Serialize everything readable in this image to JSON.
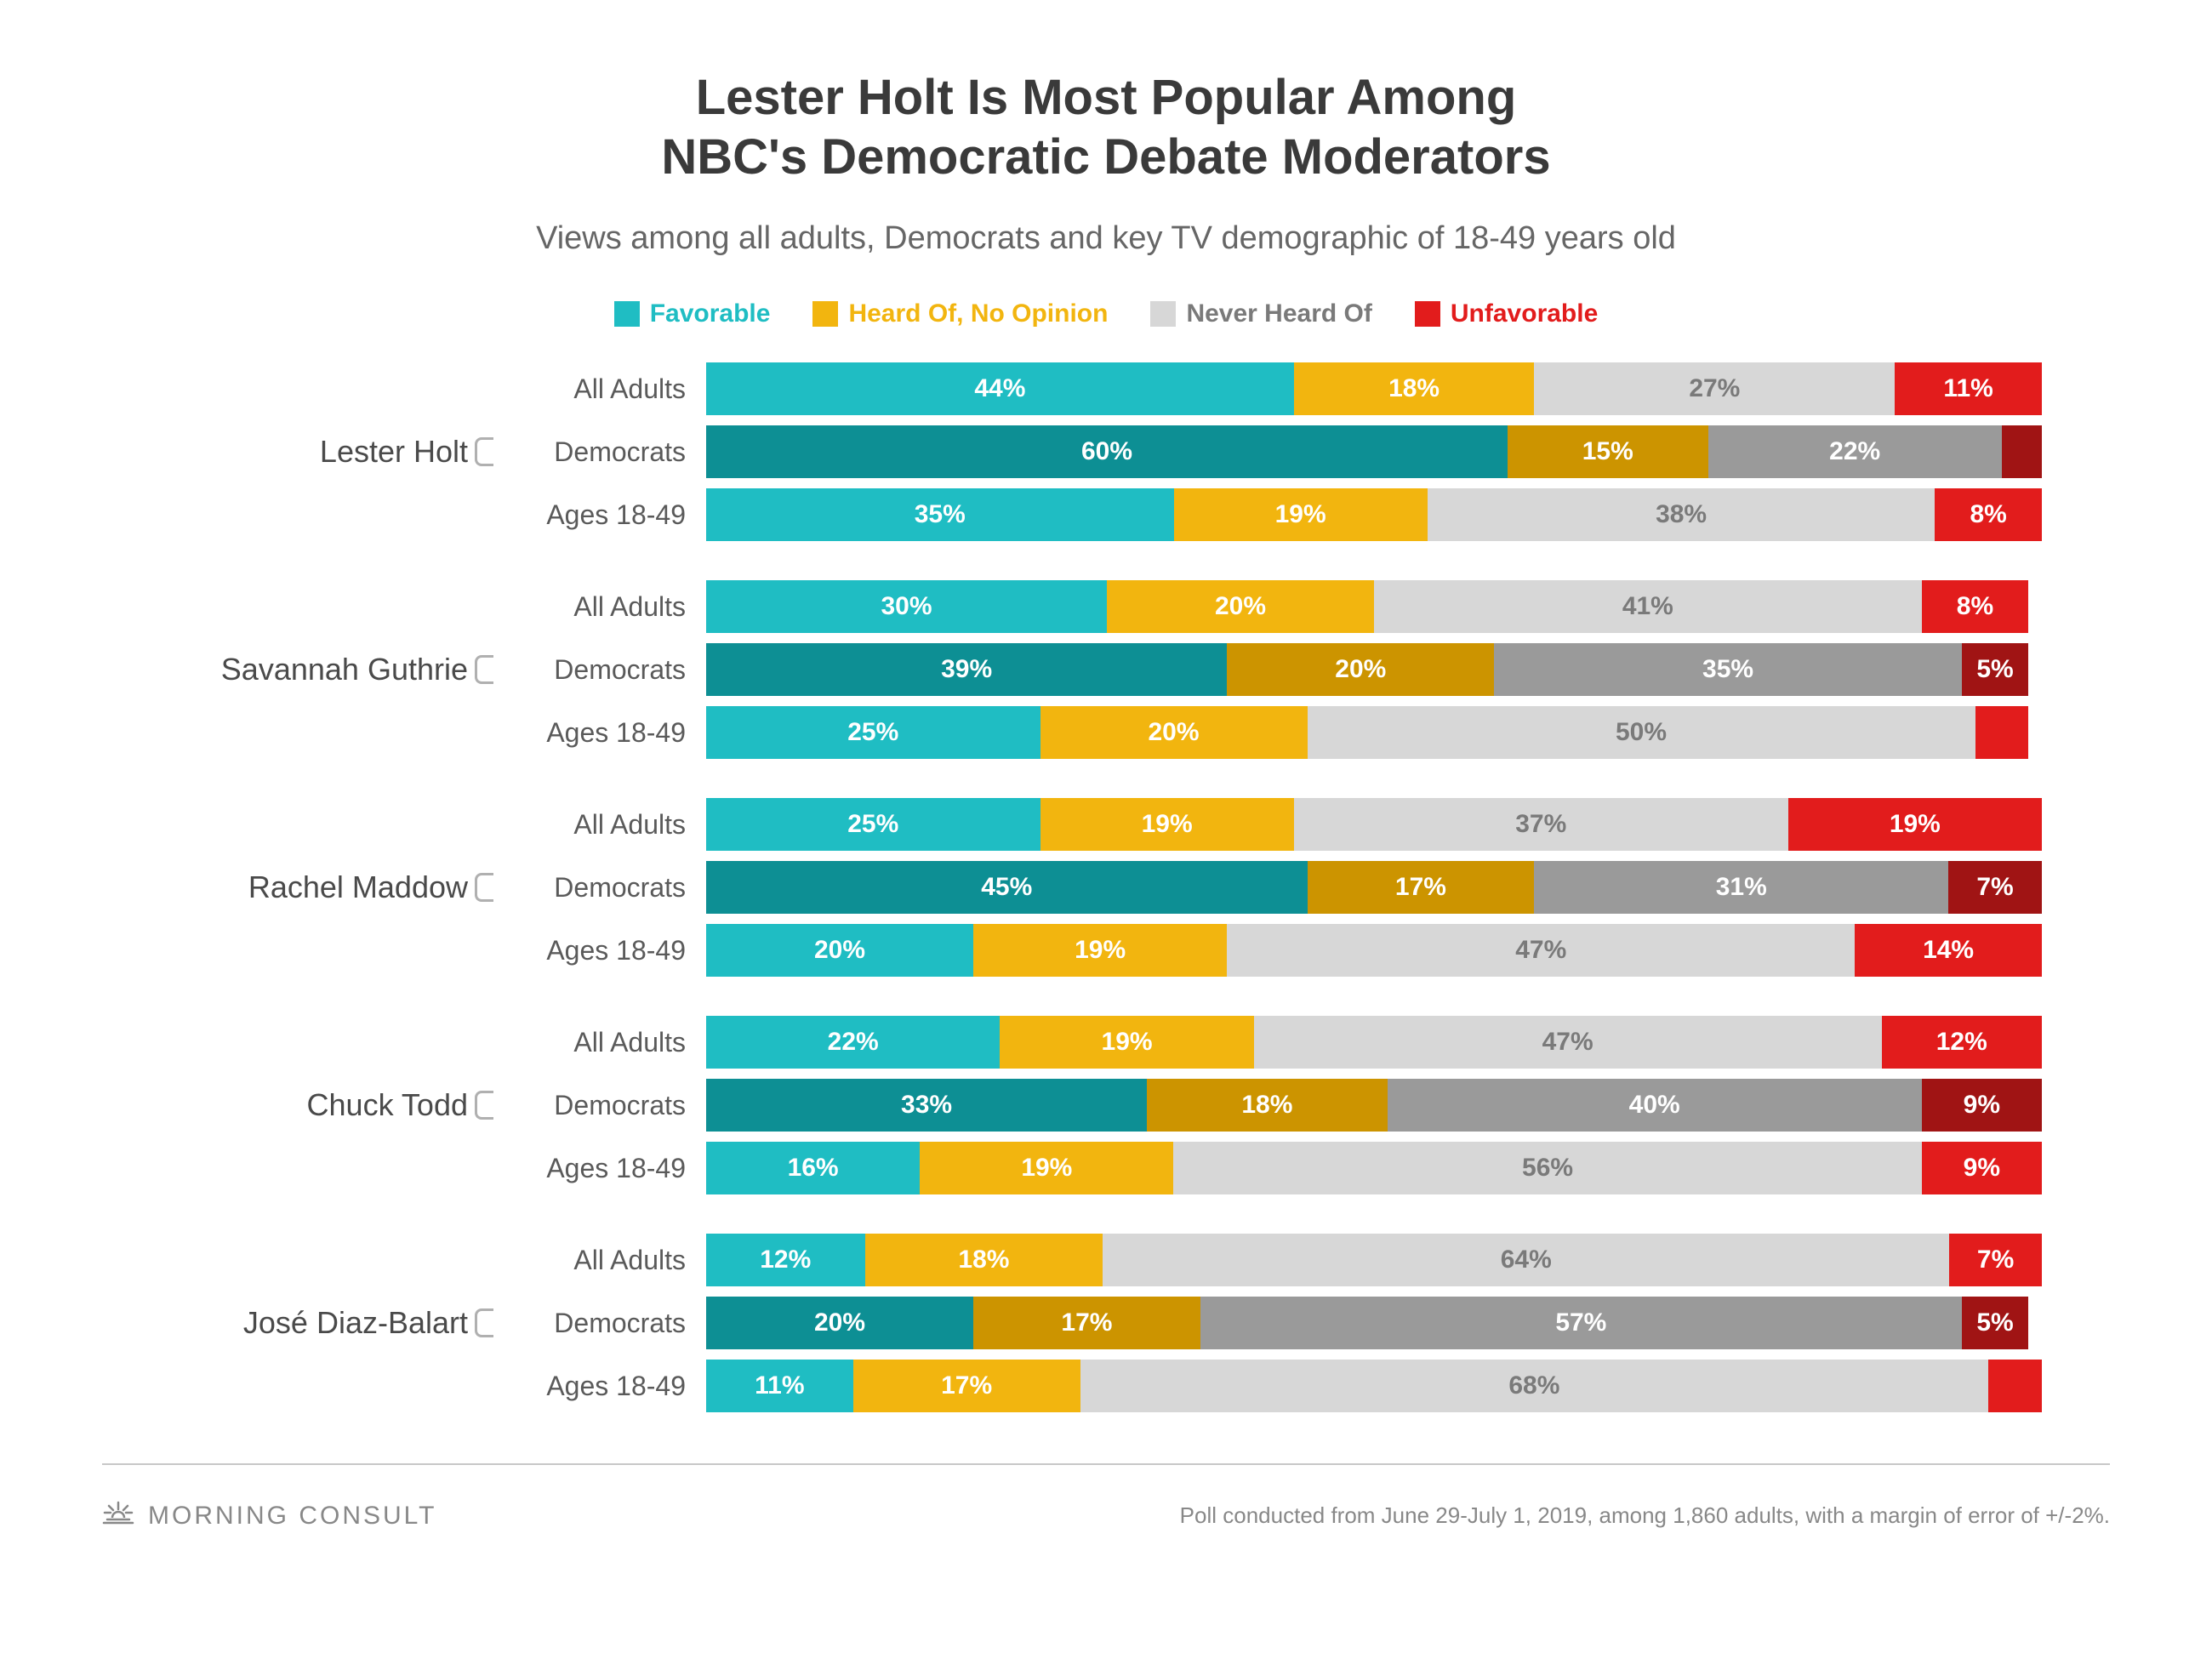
{
  "title_line1": "Lester Holt Is Most Popular Among",
  "title_line2": "NBC's Democratic Debate Moderators",
  "title_fontsize": 58,
  "subtitle": "Views among all adults, Democrats and key TV demographic of 18-49 years old",
  "subtitle_fontsize": 38,
  "legend_fontsize": 30,
  "row_label_fontsize": 32,
  "group_label_fontsize": 36,
  "value_fontsize": 30,
  "footer_fontsize": 26,
  "logo_fontsize": 30,
  "colors": {
    "favorable": "#1fbdc3",
    "favorable_dark": "#0d8f94",
    "heardof": "#f2b50f",
    "heardof_dark": "#cc9400",
    "neverheard": "#d7d7d7",
    "neverheard_dark": "#9a9a9a",
    "unfavorable": "#e21c1c",
    "unfavorable_dark": "#a01414",
    "neverheard_text": "#7a7a7a"
  },
  "legend": [
    {
      "label": "Favorable",
      "color_key": "favorable"
    },
    {
      "label": "Heard Of, No Opinion",
      "color_key": "heardof"
    },
    {
      "label": "Never Heard Of",
      "color_key": "neverheard"
    },
    {
      "label": "Unfavorable",
      "color_key": "unfavorable"
    }
  ],
  "segment_label_threshold": 5,
  "groups": [
    {
      "name": "Lester Holt",
      "rows": [
        {
          "label": "All Adults",
          "dark": false,
          "values": [
            44,
            18,
            27,
            11
          ]
        },
        {
          "label": "Democrats",
          "dark": true,
          "values": [
            60,
            15,
            22,
            3
          ]
        },
        {
          "label": "Ages 18-49",
          "dark": false,
          "values": [
            35,
            19,
            38,
            8
          ]
        }
      ]
    },
    {
      "name": "Savannah Guthrie",
      "rows": [
        {
          "label": "All Adults",
          "dark": false,
          "values": [
            30,
            20,
            41,
            8
          ]
        },
        {
          "label": "Democrats",
          "dark": true,
          "values": [
            39,
            20,
            35,
            5
          ]
        },
        {
          "label": "Ages 18-49",
          "dark": false,
          "values": [
            25,
            20,
            50,
            4
          ]
        }
      ]
    },
    {
      "name": "Rachel Maddow",
      "rows": [
        {
          "label": "All Adults",
          "dark": false,
          "values": [
            25,
            19,
            37,
            19
          ]
        },
        {
          "label": "Democrats",
          "dark": true,
          "values": [
            45,
            17,
            31,
            7
          ]
        },
        {
          "label": "Ages 18-49",
          "dark": false,
          "values": [
            20,
            19,
            47,
            14
          ]
        }
      ]
    },
    {
      "name": "Chuck Todd",
      "rows": [
        {
          "label": "All Adults",
          "dark": false,
          "values": [
            22,
            19,
            47,
            12
          ]
        },
        {
          "label": "Democrats",
          "dark": true,
          "values": [
            33,
            18,
            40,
            9
          ]
        },
        {
          "label": "Ages 18-49",
          "dark": false,
          "values": [
            16,
            19,
            56,
            9
          ]
        }
      ]
    },
    {
      "name": "José Diaz-Balart",
      "rows": [
        {
          "label": "All Adults",
          "dark": false,
          "values": [
            12,
            18,
            64,
            7
          ]
        },
        {
          "label": "Democrats",
          "dark": true,
          "values": [
            20,
            17,
            57,
            5
          ]
        },
        {
          "label": "Ages 18-49",
          "dark": false,
          "values": [
            11,
            17,
            68,
            4
          ]
        }
      ]
    }
  ],
  "footer": {
    "logo_text": "MORNING CONSULT",
    "note": "Poll conducted from June 29-July 1, 2019, among 1,860 adults, with a margin of error of +/-2%."
  }
}
